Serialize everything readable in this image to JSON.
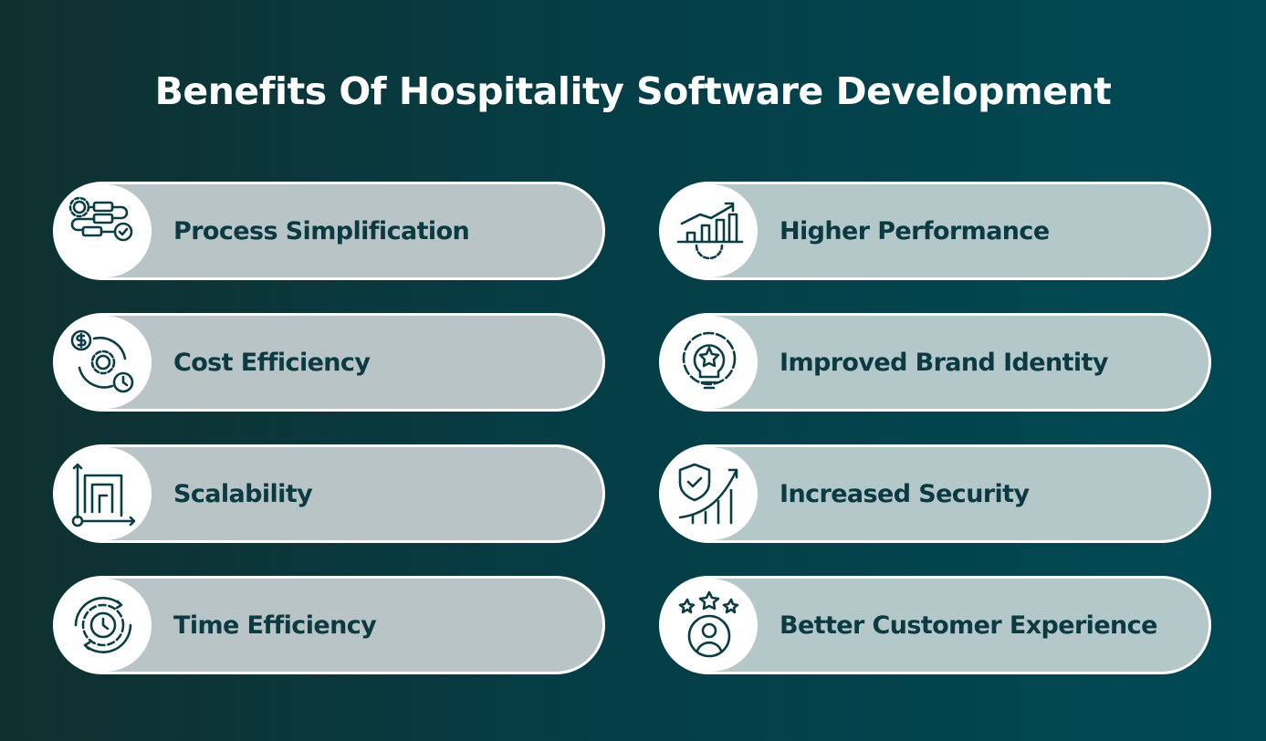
{
  "title": "Benefits Of Hospitality Software Development",
  "left": [
    {
      "label": "Process Simplification",
      "icon": "process-flow-icon"
    },
    {
      "label": "Cost Efficiency",
      "icon": "cost-cycle-icon"
    },
    {
      "label": "Scalability",
      "icon": "scalability-icon"
    },
    {
      "label": "Time Efficiency",
      "icon": "gear-clock-icon"
    }
  ],
  "right": [
    {
      "label": "Higher Performance",
      "icon": "growth-chart-gear-icon"
    },
    {
      "label": "Improved Brand Identity",
      "icon": "gear-bulb-star-icon"
    },
    {
      "label": "Increased Security",
      "icon": "shield-growth-icon"
    },
    {
      "label": "Better Customer Experience",
      "icon": "customer-stars-icon"
    }
  ],
  "colors": {
    "card_left": "#b8c4c5",
    "card_right": "#b4c7c9",
    "text": "#0b3a42",
    "title": "#ffffff"
  }
}
